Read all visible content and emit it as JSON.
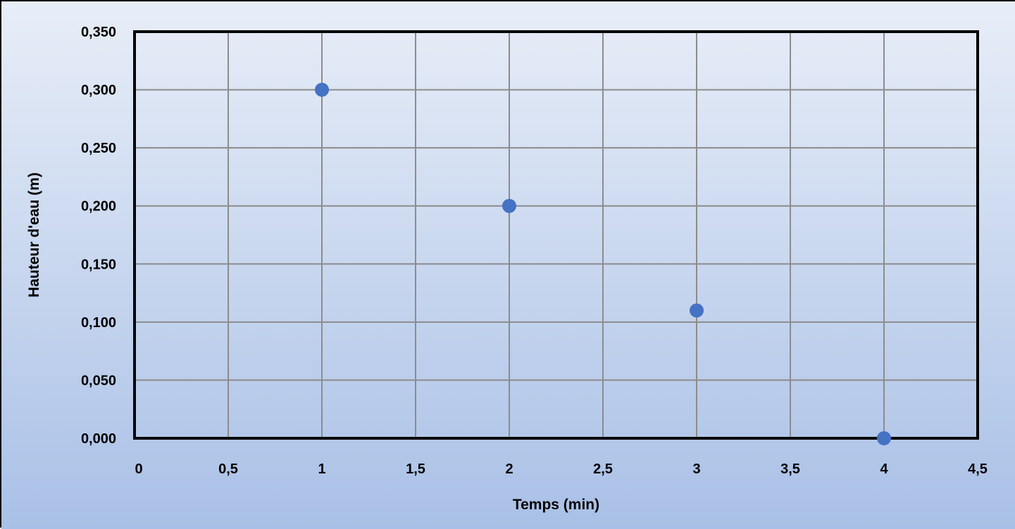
{
  "chart_data": {
    "type": "scatter",
    "title": "",
    "xlabel": "Temps (min)",
    "ylabel": "Hauteur d'eau (m)",
    "xlim": [
      0,
      4.5
    ],
    "ylim": [
      0,
      0.35
    ],
    "x_ticks": [
      "0",
      "0,5",
      "1",
      "1,5",
      "2",
      "2,5",
      "3",
      "3,5",
      "4",
      "4,5"
    ],
    "y_ticks": [
      "0,000",
      "0,050",
      "0,100",
      "0,150",
      "0,200",
      "0,250",
      "0,300",
      "0,350"
    ],
    "grid": true,
    "legend": "none",
    "series": [
      {
        "x": [
          1,
          2,
          3,
          4
        ],
        "y": [
          0.3,
          0.2,
          0.11,
          0.0
        ],
        "color": "#4472C4"
      }
    ],
    "background_gradient": [
      "#e8eef8",
      "#a9c0e6"
    ],
    "grid_color": "#8c8c8c",
    "plot_border_color": "#000000"
  }
}
